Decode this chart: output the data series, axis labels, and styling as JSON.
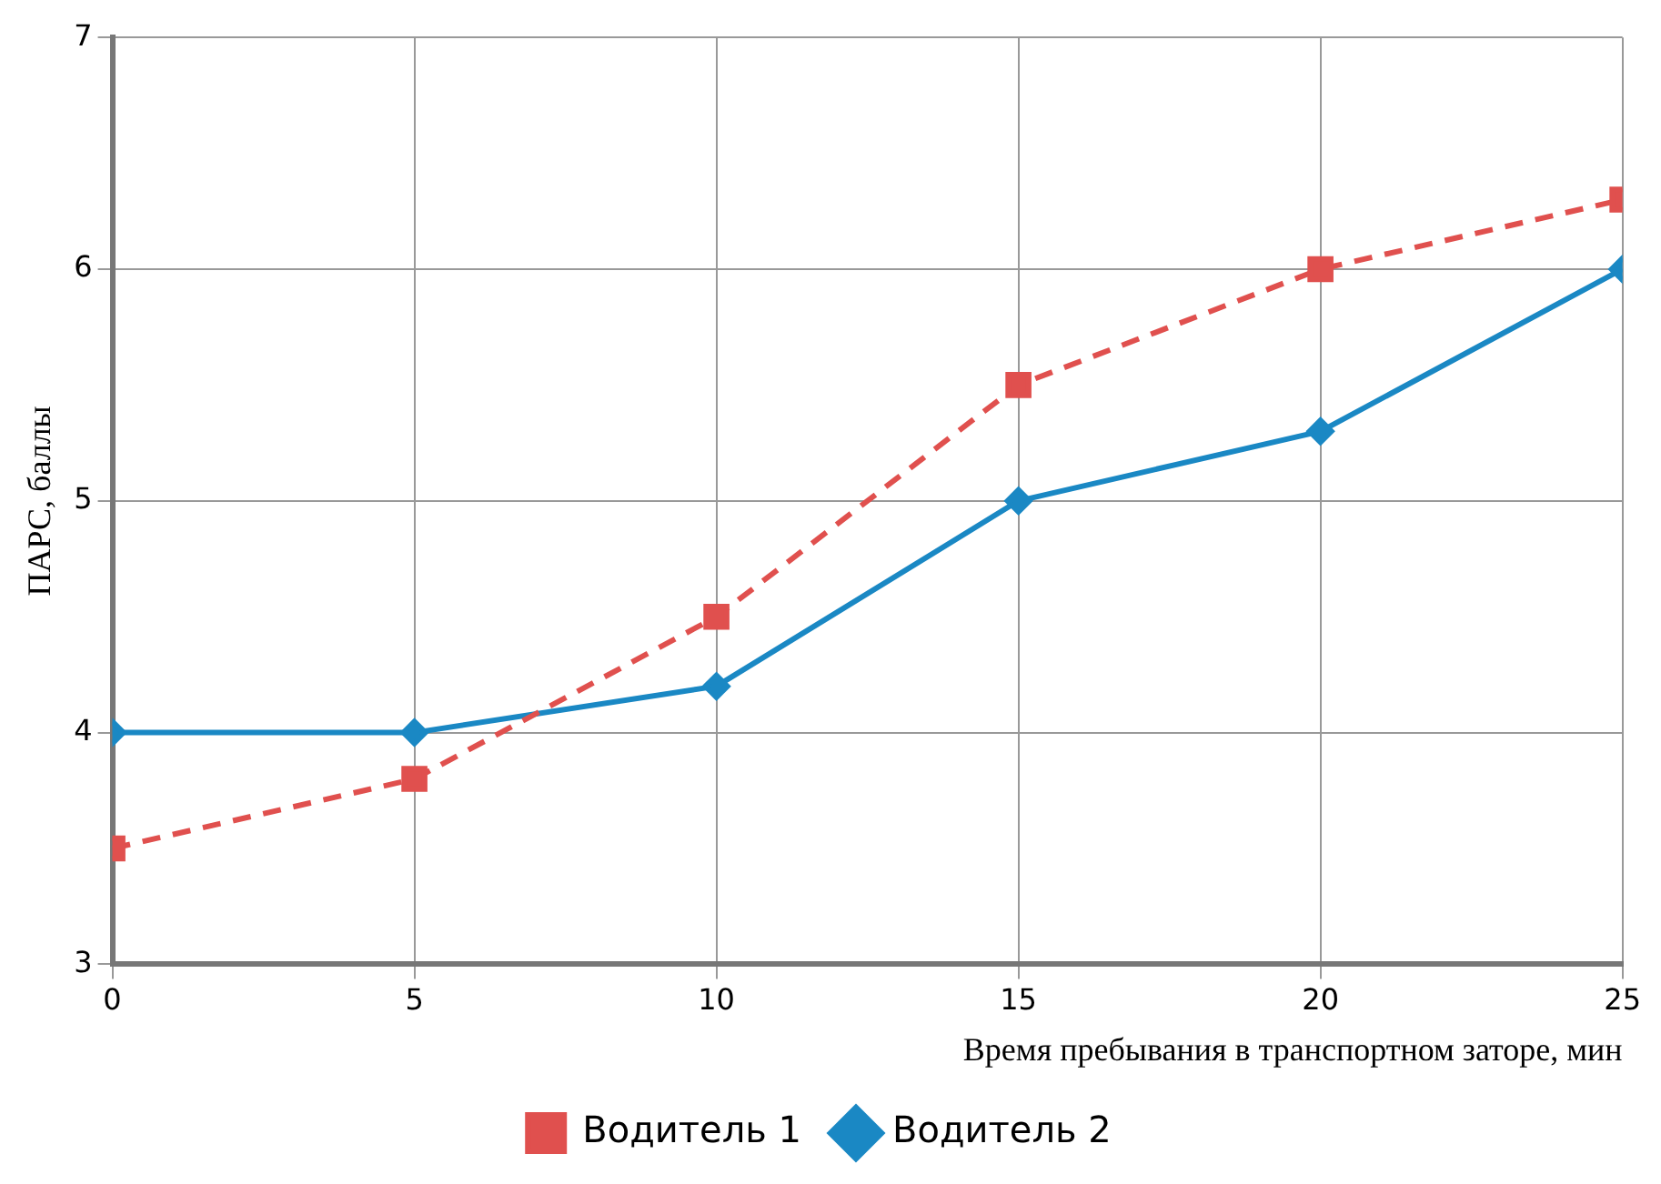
{
  "chart_data": {
    "type": "line",
    "xlabel": "Время пребывания в транспортном заторе, мин",
    "ylabel": "ПАРС, баллы",
    "x": [
      0,
      5,
      10,
      15,
      20,
      25
    ],
    "series": [
      {
        "name": "Водитель 1",
        "color": "#e0504e",
        "values": [
          3.5,
          3.8,
          4.5,
          5.5,
          6.0,
          6.3
        ],
        "marker": "square",
        "line_style": "dashed"
      },
      {
        "name": "Водитель 2",
        "color": "#1a88c4",
        "values": [
          4,
          4,
          4.2,
          5,
          5.3,
          6
        ],
        "marker": "diamond",
        "line_style": "solid"
      }
    ],
    "xlim": [
      0,
      25
    ],
    "xticks": [
      0,
      5,
      10,
      15,
      20,
      25
    ],
    "ylim": [
      3,
      7
    ],
    "yticks": [
      3,
      4,
      5,
      6,
      7
    ],
    "grid": true,
    "legend": "bottom"
  }
}
